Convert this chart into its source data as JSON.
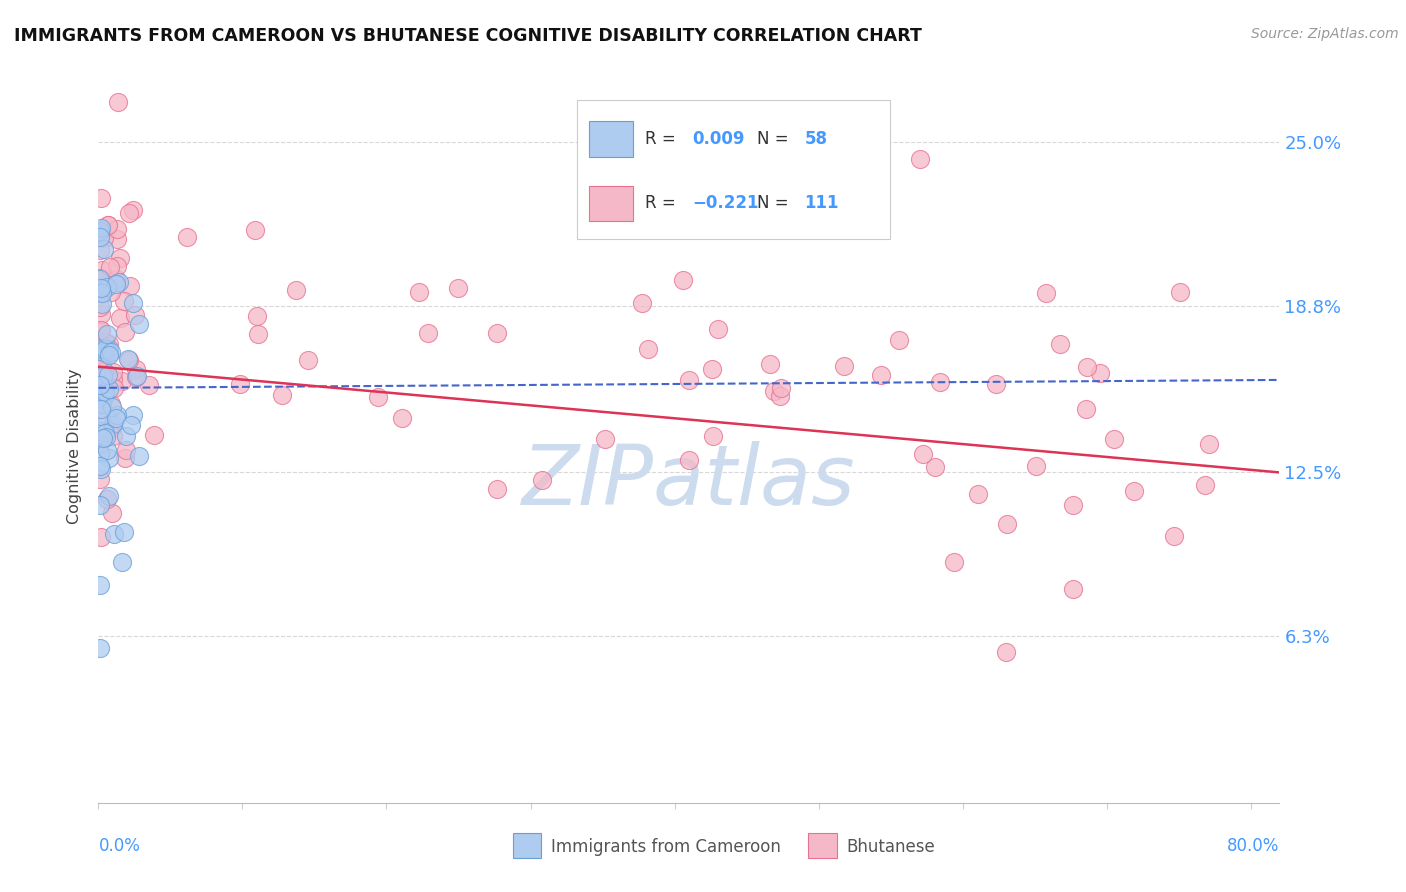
{
  "title": "IMMIGRANTS FROM CAMEROON VS BHUTANESE COGNITIVE DISABILITY CORRELATION CHART",
  "source": "Source: ZipAtlas.com",
  "ylabel": "Cognitive Disability",
  "ytick_labels": [
    "6.3%",
    "12.5%",
    "18.8%",
    "25.0%"
  ],
  "ytick_values": [
    0.063,
    0.125,
    0.188,
    0.25
  ],
  "xlim": [
    0.0,
    0.82
  ],
  "ylim": [
    0.0,
    0.27
  ],
  "color_cameroon": "#aecbf0",
  "color_bhutanese": "#f5b8c8",
  "color_cameroon_edge": "#6a9fd8",
  "color_bhutanese_edge": "#e87090",
  "color_line_cameroon": "#4466cc",
  "color_line_bhutanese": "#dd3355",
  "watermark_color": "#ccdcee",
  "background_color": "#ffffff",
  "grid_color": "#d8d8d8",
  "cam_trend_x0": 0.0,
  "cam_trend_x1": 0.82,
  "cam_trend_y0": 0.157,
  "cam_trend_y1": 0.16,
  "bhu_trend_x0": 0.0,
  "bhu_trend_x1": 0.82,
  "bhu_trend_y0": 0.165,
  "bhu_trend_y1": 0.125
}
